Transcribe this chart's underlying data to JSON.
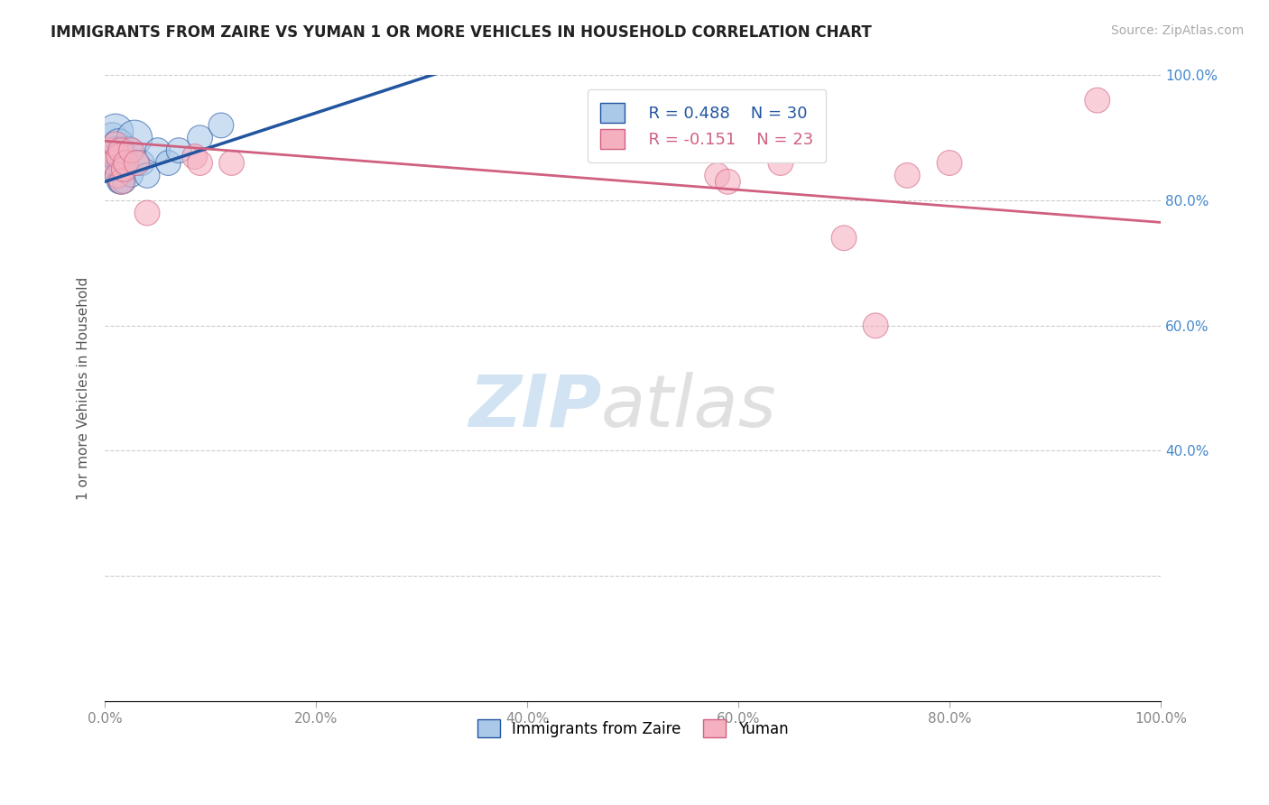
{
  "title": "IMMIGRANTS FROM ZAIRE VS YUMAN 1 OR MORE VEHICLES IN HOUSEHOLD CORRELATION CHART",
  "source": "Source: ZipAtlas.com",
  "ylabel": "1 or more Vehicles in Household",
  "xlim": [
    0.0,
    1.0
  ],
  "ylim": [
    0.0,
    1.0
  ],
  "xtick_labels": [
    "0.0%",
    "",
    "",
    "",
    "",
    "",
    "",
    "",
    "",
    "",
    "20.0%",
    "",
    "",
    "",
    "",
    "",
    "",
    "",
    "",
    "",
    "40.0%",
    "",
    "",
    "",
    "",
    "",
    "",
    "",
    "",
    "",
    "60.0%",
    "",
    "",
    "",
    "",
    "",
    "",
    "",
    "",
    "",
    "80.0%",
    "",
    "",
    "",
    "",
    "",
    "",
    "",
    "",
    "",
    "100.0%"
  ],
  "xtick_vals": [
    0.0,
    0.02,
    0.04,
    0.06,
    0.08,
    0.1,
    0.12,
    0.14,
    0.16,
    0.18,
    0.2,
    0.22,
    0.24,
    0.26,
    0.28,
    0.3,
    0.32,
    0.34,
    0.36,
    0.38,
    0.4,
    0.42,
    0.44,
    0.46,
    0.48,
    0.5,
    0.52,
    0.54,
    0.56,
    0.58,
    0.6,
    0.62,
    0.64,
    0.66,
    0.68,
    0.7,
    0.72,
    0.74,
    0.76,
    0.78,
    0.8,
    0.82,
    0.84,
    0.86,
    0.88,
    0.9,
    0.92,
    0.94,
    0.96,
    0.98,
    1.0
  ],
  "xtick_labels_major": [
    "0.0%",
    "20.0%",
    "40.0%",
    "60.0%",
    "80.0%",
    "100.0%"
  ],
  "xtick_vals_major": [
    0.0,
    0.2,
    0.4,
    0.6,
    0.8,
    1.0
  ],
  "ytick_labels_left": [],
  "ytick_vals_left": [],
  "right_ytick_labels": [
    "100.0%",
    "80.0%",
    "60.0%",
    "40.0%"
  ],
  "right_ytick_vals": [
    1.0,
    0.8,
    0.6,
    0.4
  ],
  "grid_ytick_vals": [
    0.2,
    0.4,
    0.6,
    0.8,
    1.0
  ],
  "blue_color": "#aac8e8",
  "blue_line_color": "#2255a0",
  "pink_color": "#f5b0c0",
  "pink_line_color": "#d06080",
  "legend_R_blue": "R = 0.488",
  "legend_N_blue": "N = 30",
  "legend_R_pink": "R = -0.151",
  "legend_N_pink": "N = 23",
  "blue_intercept": 0.83,
  "blue_slope": 0.55,
  "blue_xstart": 0.0,
  "blue_xend": 0.37,
  "pink_intercept": 0.895,
  "pink_slope": -0.13,
  "pink_xstart": 0.0,
  "pink_xend": 1.0,
  "blue_points_x": [
    0.005,
    0.007,
    0.008,
    0.009,
    0.01,
    0.01,
    0.011,
    0.012,
    0.012,
    0.013,
    0.013,
    0.014,
    0.015,
    0.015,
    0.016,
    0.017,
    0.018,
    0.019,
    0.02,
    0.022,
    0.025,
    0.028,
    0.03,
    0.035,
    0.04,
    0.05,
    0.06,
    0.07,
    0.09,
    0.11
  ],
  "blue_points_y": [
    0.87,
    0.9,
    0.88,
    0.86,
    0.88,
    0.91,
    0.85,
    0.84,
    0.87,
    0.83,
    0.89,
    0.86,
    0.88,
    0.83,
    0.85,
    0.87,
    0.83,
    0.86,
    0.87,
    0.88,
    0.84,
    0.9,
    0.86,
    0.86,
    0.84,
    0.88,
    0.86,
    0.88,
    0.9,
    0.92
  ],
  "blue_sizes": [
    600,
    600,
    500,
    400,
    500,
    800,
    400,
    400,
    600,
    350,
    600,
    400,
    500,
    400,
    400,
    500,
    350,
    400,
    400,
    500,
    350,
    800,
    400,
    400,
    400,
    400,
    400,
    400,
    400,
    400
  ],
  "pink_points_x": [
    0.005,
    0.008,
    0.01,
    0.012,
    0.013,
    0.015,
    0.016,
    0.018,
    0.02,
    0.025,
    0.03,
    0.04,
    0.085,
    0.09,
    0.12,
    0.58,
    0.59,
    0.64,
    0.7,
    0.73,
    0.76,
    0.8,
    0.94
  ],
  "pink_points_y": [
    0.88,
    0.86,
    0.89,
    0.84,
    0.87,
    0.88,
    0.83,
    0.85,
    0.86,
    0.88,
    0.86,
    0.78,
    0.87,
    0.86,
    0.86,
    0.84,
    0.83,
    0.86,
    0.74,
    0.6,
    0.84,
    0.86,
    0.96
  ],
  "pink_sizes": [
    400,
    400,
    400,
    400,
    400,
    400,
    400,
    400,
    400,
    400,
    400,
    400,
    400,
    400,
    400,
    400,
    400,
    400,
    400,
    400,
    400,
    400,
    400
  ],
  "watermark_zip_color": "#c0d8f0",
  "watermark_atlas_color": "#c8c8c8",
  "background_color": "#ffffff",
  "grid_color": "#cccccc",
  "bottom_legend_labels": [
    "Immigrants from Zaire",
    "Yuman"
  ]
}
